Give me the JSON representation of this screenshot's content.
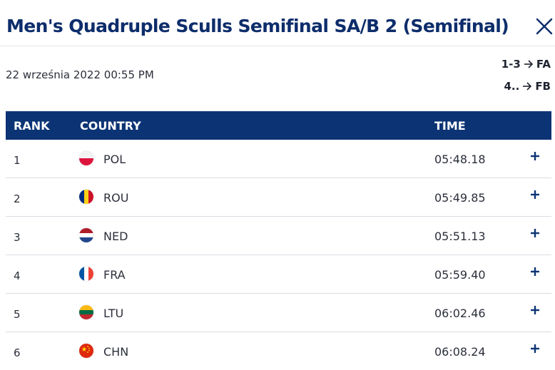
{
  "header": {
    "title": "Men's Quadruple Sculls Semifinal SA/B 2 (Semifinal)",
    "close_icon": "close-icon"
  },
  "meta": {
    "date": "22 września 2022 00:55 PM",
    "progression": [
      {
        "range": "1-3",
        "target": "FA"
      },
      {
        "range": "4..",
        "target": "FB"
      }
    ]
  },
  "table": {
    "columns": {
      "rank": "RANK",
      "country": "COUNTRY",
      "time": "TIME"
    },
    "rows": [
      {
        "rank": "1",
        "country": "POL",
        "time": "05:48.18",
        "flag_icon": "poland-flag-icon"
      },
      {
        "rank": "2",
        "country": "ROU",
        "time": "05:49.85",
        "flag_icon": "romania-flag-icon"
      },
      {
        "rank": "3",
        "country": "NED",
        "time": "05:51.13",
        "flag_icon": "netherlands-flag-icon"
      },
      {
        "rank": "4",
        "country": "FRA",
        "time": "05:59.40",
        "flag_icon": "france-flag-icon"
      },
      {
        "rank": "5",
        "country": "LTU",
        "time": "06:02.46",
        "flag_icon": "lithuania-flag-icon"
      },
      {
        "rank": "6",
        "country": "CHN",
        "time": "06:08.24",
        "flag_icon": "china-flag-icon"
      }
    ]
  },
  "colors": {
    "title": "#0d2d6b",
    "table_header_bg": "#0c3474",
    "table_header_text": "#ffffff",
    "row_divider": "#d9dce3",
    "expand_icon": "#0c3474"
  }
}
